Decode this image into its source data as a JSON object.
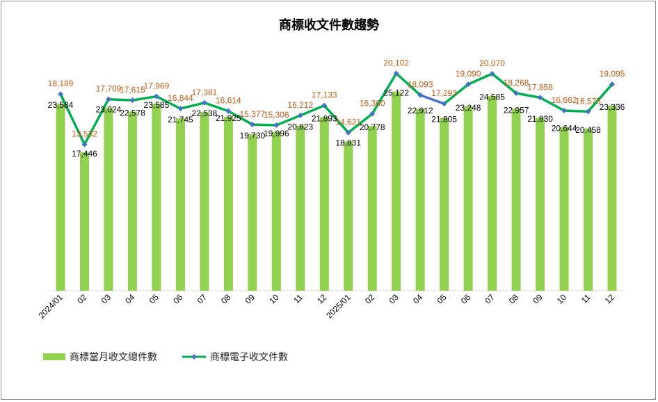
{
  "chart_data": {
    "type": "bar+line",
    "title": "商標收文件數趨勢",
    "categories": [
      "2024/01",
      "02",
      "03",
      "04",
      "05",
      "06",
      "07",
      "08",
      "09",
      "10",
      "11",
      "12",
      "2025/01",
      "02",
      "03",
      "04",
      "05",
      "06",
      "07",
      "08",
      "09",
      "10",
      "11",
      "12"
    ],
    "series": [
      {
        "name": "商標當月收文總件數",
        "type": "bar",
        "axis": "primary",
        "color": "#92D050",
        "values": [
          23584,
          17446,
          23024,
          22578,
          23585,
          21745,
          22538,
          21925,
          19730,
          19996,
          20823,
          21893,
          18831,
          20778,
          25122,
          22912,
          21805,
          23248,
          24585,
          22957,
          21830,
          20644,
          20458,
          23336
        ],
        "label_color": "#000000"
      },
      {
        "name": "商標電子收文件數",
        "type": "line",
        "axis": "secondary",
        "color": "#00B050",
        "marker_color": "#4472C4",
        "highlight_segment_color": "#4472C4",
        "highlight_segment": [
          "04",
          "05"
        ],
        "values": [
          18189,
          13532,
          17709,
          17615,
          17969,
          16844,
          17381,
          16614,
          15377,
          15306,
          16212,
          17133,
          14621,
          16360,
          20102,
          18093,
          17293,
          19090,
          20070,
          18268,
          17858,
          16662,
          16575,
          19095
        ],
        "label_color": "#C55A11"
      }
    ],
    "ylim_primary": [
      0,
      30000
    ],
    "ylim_secondary": [
      0,
      22000
    ],
    "axes_visible": false,
    "grid": false,
    "legend": "bottom-left"
  }
}
